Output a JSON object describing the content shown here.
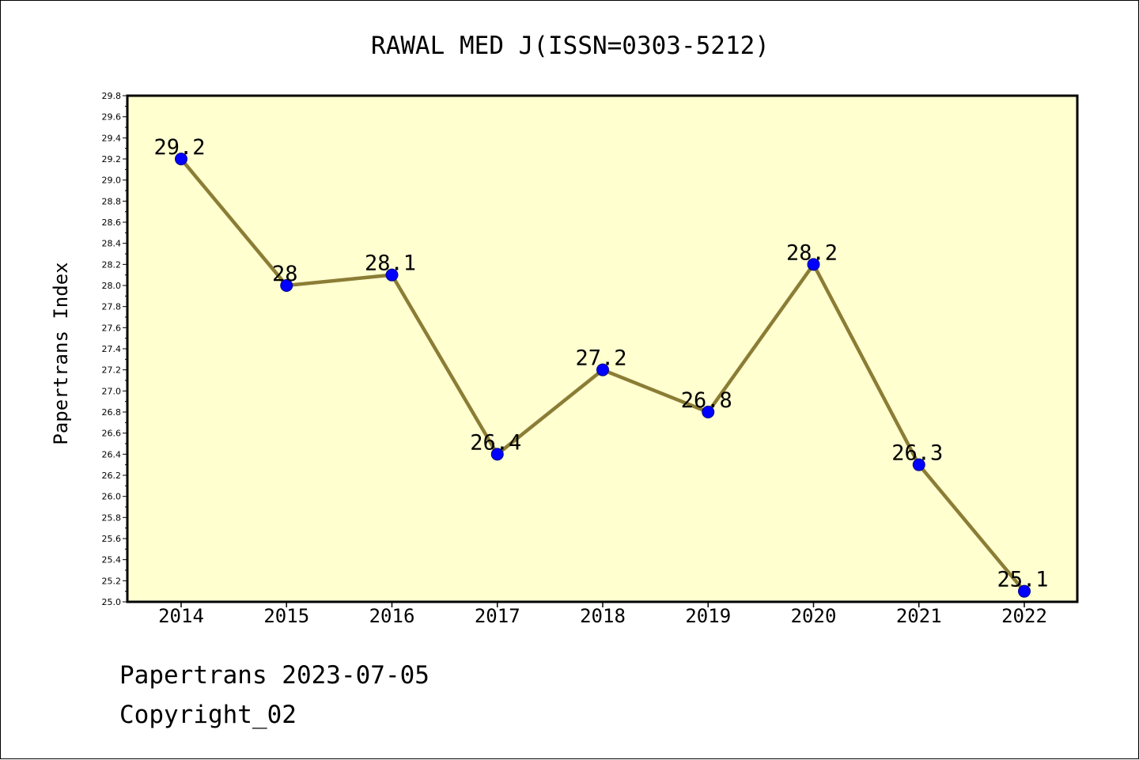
{
  "chart_data": {
    "type": "line",
    "title": "RAWAL MED J(ISSN=0303-5212)",
    "ylabel": "Papertrans Index",
    "xlabel": "",
    "categories": [
      "2014",
      "2015",
      "2016",
      "2017",
      "2018",
      "2019",
      "2020",
      "2021",
      "2022"
    ],
    "values": [
      29.2,
      28.0,
      28.1,
      26.4,
      27.2,
      26.8,
      28.2,
      26.3,
      25.1
    ],
    "data_labels": [
      "29.2",
      "28",
      "28.1",
      "26.4",
      "27.2",
      "26.8",
      "28.2",
      "26.3",
      "25.1"
    ],
    "ylim": [
      25.0,
      29.8
    ],
    "y_major_step": 0.2,
    "grid": false,
    "legend": "none",
    "colors": {
      "plot_background": "#ffffd0",
      "line": "#8b7d35",
      "marker": "#0000ff",
      "marker_edge": "#00008b",
      "axis": "#000000"
    }
  },
  "footer": {
    "source": "Papertrans 2023-07-05",
    "copyright": "Copyright_02"
  }
}
